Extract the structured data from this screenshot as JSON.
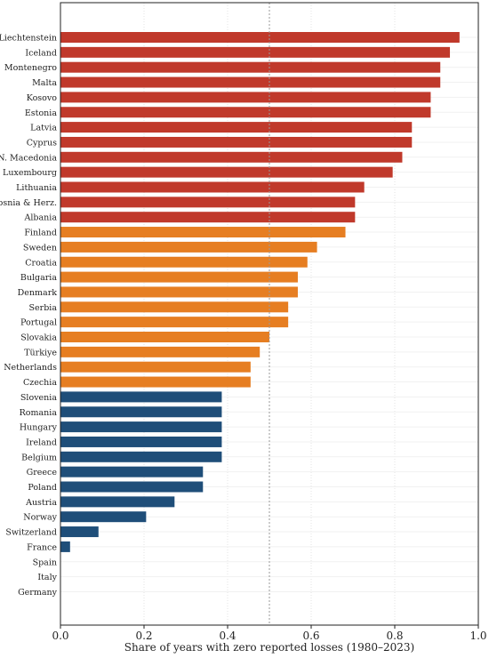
{
  "chart_data": {
    "type": "bar",
    "orientation": "horizontal",
    "title": "",
    "xlabel": "Share of years with zero reported losses (1980–2023)",
    "ylabel": "",
    "xlim": [
      0,
      1.0
    ],
    "xticks": [
      "0.0",
      "0.2",
      "0.4",
      "0.6",
      "0.8",
      "1.0"
    ],
    "reference_line": 0.5,
    "grid": "vertical, dotted",
    "legend": "none",
    "colors": {
      "high": "#c0392b",
      "mid": "#e67e22",
      "low": "#1f4e79",
      "neutral": "#3d9970"
    },
    "categories": [
      "Liechtenstein",
      "Iceland",
      "Montenegro",
      "Malta",
      "Kosovo",
      "Estonia",
      "Latvia",
      "Cyprus",
      "N. Macedonia",
      "Luxembourg",
      "Lithuania",
      "Bosnia & Herz.",
      "Albania",
      "Finland",
      "Sweden",
      "Croatia",
      "Bulgaria",
      "Denmark",
      "Serbia",
      "Portugal",
      "Slovakia",
      "Türkiye",
      "Netherlands",
      "Czechia",
      "Slovenia",
      "Romania",
      "Hungary",
      "Ireland",
      "Belgium",
      "Greece",
      "Poland",
      "Austria",
      "Norway",
      "Switzerland",
      "France",
      "Spain",
      "Italy",
      "Germany"
    ],
    "values": [
      0.955,
      0.932,
      0.909,
      0.909,
      0.886,
      0.886,
      0.841,
      0.841,
      0.818,
      0.795,
      0.727,
      0.705,
      0.705,
      0.682,
      0.614,
      0.591,
      0.568,
      0.568,
      0.545,
      0.545,
      0.5,
      0.477,
      0.455,
      0.455,
      0.386,
      0.386,
      0.386,
      0.386,
      0.386,
      0.341,
      0.341,
      0.273,
      0.205,
      0.091,
      0.023,
      0.0,
      0.0,
      0.0
    ],
    "groups": [
      "high",
      "high",
      "high",
      "high",
      "high",
      "high",
      "high",
      "high",
      "high",
      "high",
      "high",
      "high",
      "high",
      "mid",
      "mid",
      "mid",
      "mid",
      "mid",
      "mid",
      "mid",
      "mid",
      "mid",
      "mid",
      "mid",
      "low",
      "low",
      "low",
      "low",
      "low",
      "low",
      "low",
      "low",
      "low",
      "low",
      "low",
      "low",
      "low",
      "low"
    ]
  }
}
